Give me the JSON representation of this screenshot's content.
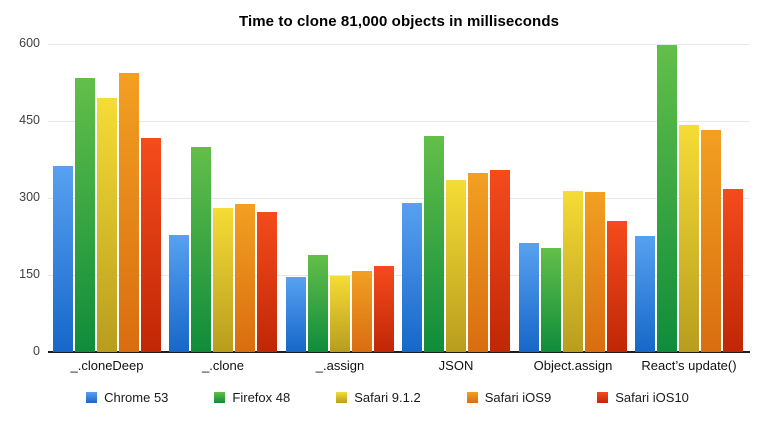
{
  "title": "Time to clone 81,000 objects in milliseconds",
  "chart_data": {
    "type": "bar",
    "title": "Time to clone 81,000 objects in milliseconds",
    "categories": [
      "_.cloneDeep",
      "_.clone",
      "_.assign",
      "JSON",
      "Object.assign",
      "React’s update()"
    ],
    "series": [
      {
        "name": "Chrome 53",
        "color_top": "#58a1f1",
        "color_bottom": "#1667c9",
        "values": [
          362,
          228,
          147,
          291,
          213,
          226
        ]
      },
      {
        "name": "Firefox 48",
        "color_top": "#63bf49",
        "color_bottom": "#0f8c3b",
        "values": [
          533,
          400,
          189,
          421,
          202,
          598
        ]
      },
      {
        "name": "Safari 9.1.2",
        "color_top": "#f6dc35",
        "color_bottom": "#b89d1e",
        "values": [
          495,
          281,
          148,
          335,
          314,
          442
        ]
      },
      {
        "name": "Safari iOS9",
        "color_top": "#f2a022",
        "color_bottom": "#d96d10",
        "values": [
          543,
          288,
          158,
          349,
          312,
          433
        ]
      },
      {
        "name": "Safari iOS10",
        "color_top": "#f54b1d",
        "color_bottom": "#c02706",
        "values": [
          416,
          273,
          168,
          355,
          255,
          318
        ]
      }
    ],
    "xlabel": "",
    "ylabel": "",
    "ylim": [
      0,
      600
    ],
    "yticks": [
      600,
      450,
      300,
      150,
      0
    ],
    "grid": true,
    "legend_position": "bottom",
    "background": "#ffffff",
    "grid_color": "#e8e8e8",
    "axis_line_color": "#1c1c1c"
  }
}
